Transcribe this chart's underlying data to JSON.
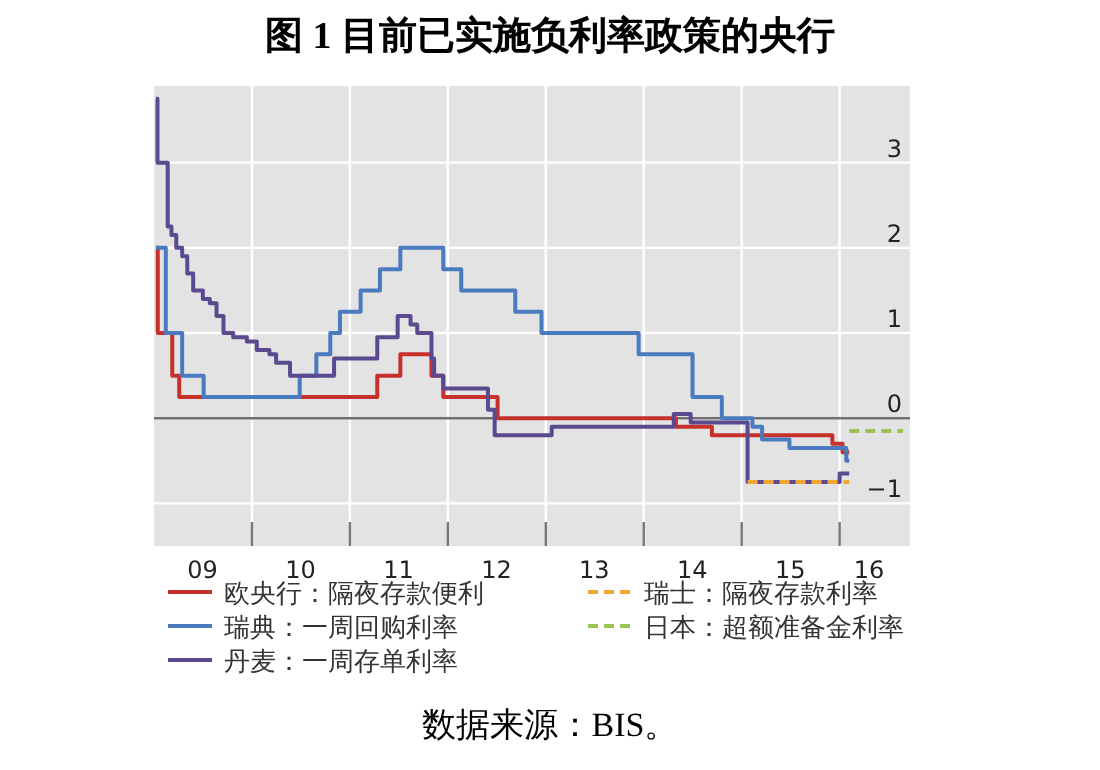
{
  "chart_data": {
    "type": "step",
    "title": "图 1  目前已实施负利率政策的央行",
    "xlim": [
      "2009-01-01",
      "2016-09-20"
    ],
    "ylim": [
      -1.5,
      3.9
    ],
    "yticks": [
      -1,
      0,
      1,
      2,
      3
    ],
    "xticks": [
      {
        "value": "2009-07",
        "label": "09"
      },
      {
        "value": "2010",
        "label": null
      },
      {
        "value": "2010-07",
        "label": "10"
      },
      {
        "value": "2011",
        "label": null
      },
      {
        "value": "2011-07",
        "label": "11"
      },
      {
        "value": "2012",
        "label": null
      },
      {
        "value": "2012-07",
        "label": "12"
      },
      {
        "value": "2013",
        "label": null
      },
      {
        "value": "2013-07",
        "label": "13"
      },
      {
        "value": "2014",
        "label": null
      },
      {
        "value": "2014-07",
        "label": "14"
      },
      {
        "value": "2015",
        "label": null
      },
      {
        "value": "2015-07",
        "label": "15"
      },
      {
        "value": "2016",
        "label": null
      },
      {
        "value": "2016-04-20",
        "label": "16"
      }
    ],
    "grid": true,
    "legend": "bottom",
    "ref_lines": [
      {
        "axis": "y",
        "value": 0,
        "label": null,
        "color": "#707070"
      }
    ],
    "series": [
      {
        "name": "欧央行：隔夜存款便利",
        "color": "#c8302c",
        "line_style": "solid",
        "x": [
          "2009-01-08",
          "2009-01-15",
          "2009-03-10",
          "2009-04-05",
          "2011-04-13",
          "2011-07-08",
          "2011-11-01",
          "2011-12-15",
          "2012-07-05",
          "2014-05-01",
          "2014-09-12",
          "2015-12-05",
          "2016-01-12",
          "2016-02-06"
        ],
        "values": [
          2.0,
          1.0,
          0.5,
          0.25,
          0.5,
          0.75,
          0.5,
          0.25,
          0.0,
          -0.1,
          -0.2,
          -0.3,
          -0.4,
          -0.4
        ]
      },
      {
        "name": "瑞典：一周回购利率",
        "color": "#4a7bbf",
        "line_style": "solid",
        "x": [
          "2009-01-08",
          "2009-02-14",
          "2009-04-16",
          "2009-07-05",
          "2010-06-28",
          "2010-08-29",
          "2010-10-20",
          "2010-11-25",
          "2011-02-10",
          "2011-04-23",
          "2011-07-08",
          "2011-12-15",
          "2012-02-20",
          "2012-09-09",
          "2012-12-16",
          "2013-12-13",
          "2014-07-02",
          "2014-10-19",
          "2015-02-10",
          "2015-03-18",
          "2015-06-28",
          "2016-01-26",
          "2016-02-06"
        ],
        "values": [
          2.0,
          1.0,
          0.5,
          0.25,
          0.5,
          0.75,
          1.0,
          1.25,
          1.5,
          1.75,
          2.0,
          1.75,
          1.5,
          1.25,
          1.0,
          0.75,
          0.25,
          0.0,
          -0.1,
          -0.25,
          -0.35,
          -0.5,
          -0.5
        ]
      },
      {
        "name": "丹麦：一周存单利率",
        "color": "#5b4a8f",
        "line_style": "solid",
        "x": [
          "2009-01-08",
          "2009-01-14",
          "2009-02-21",
          "2009-03-07",
          "2009-03-25",
          "2009-04-16",
          "2009-05-05",
          "2009-05-27",
          "2009-07-02",
          "2009-07-28",
          "2009-08-22",
          "2009-09-17",
          "2009-10-23",
          "2009-12-13",
          "2010-01-19",
          "2010-03-07",
          "2010-04-01",
          "2010-05-23",
          "2010-11-03",
          "2011-04-13",
          "2011-06-28",
          "2011-08-15",
          "2011-09-09",
          "2011-11-01",
          "2011-11-11",
          "2011-12-15",
          "2012-05-30",
          "2012-06-24",
          "2013-01-23",
          "2014-04-23",
          "2014-06-25",
          "2015-01-23",
          "2016-01-01",
          "2016-02-06"
        ],
        "values": [
          3.75,
          3.0,
          2.25,
          2.15,
          2.0,
          1.9,
          1.7,
          1.5,
          1.4,
          1.35,
          1.2,
          1.0,
          0.95,
          0.9,
          0.8,
          0.75,
          0.65,
          0.5,
          0.7,
          0.95,
          1.2,
          1.1,
          1.0,
          0.7,
          0.5,
          0.35,
          0.1,
          -0.2,
          -0.1,
          0.05,
          -0.05,
          -0.75,
          -0.65,
          -0.65
        ]
      },
      {
        "name": "瑞士：隔夜存款利率",
        "color": "#f0a830",
        "line_style": "dashed",
        "x": [
          "2015-01-23",
          "2016-02-06"
        ],
        "values": [
          -0.75,
          -0.75
        ]
      },
      {
        "name": "日本：超额准备金利率",
        "color": "#9ac255",
        "line_style": "dashed",
        "x": [
          "2016-02-06",
          "2016-08-25"
        ],
        "values": [
          -0.15,
          -0.15
        ]
      }
    ],
    "annotations": [
      "数据来源：BIS。"
    ]
  }
}
